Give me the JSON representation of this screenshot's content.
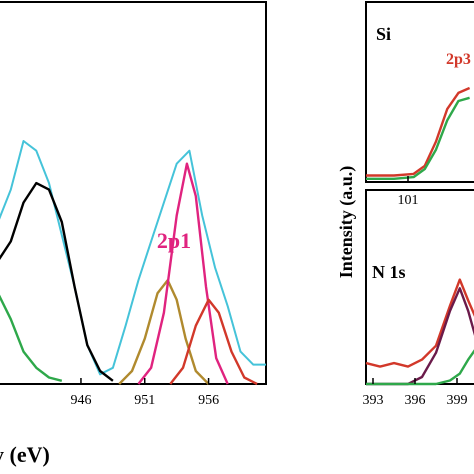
{
  "chart_data": [
    {
      "type": "line",
      "xlabel": "…gy (eV)",
      "ylabel": "",
      "xlim": [
        939.5,
        960.5
      ],
      "ylim": [
        0,
        1
      ],
      "x_ticks": [
        946,
        951,
        956
      ],
      "x_tick_labels": [
        "946",
        "951",
        "956"
      ],
      "annotations": [
        {
          "text": "2p1",
          "x": 954.6,
          "y": 0.88,
          "color": "#e0237f"
        }
      ],
      "series": [
        {
          "color": "#45c3d9",
          "points": [
            [
              939.5,
              0.5
            ],
            [
              940.5,
              0.6
            ],
            [
              941.5,
              0.75
            ],
            [
              942.5,
              0.72
            ],
            [
              943.5,
              0.62
            ],
            [
              944.5,
              0.46
            ],
            [
              945.5,
              0.3
            ],
            [
              946.5,
              0.12
            ],
            [
              947.5,
              0.03
            ],
            [
              948.5,
              0.05
            ],
            [
              949.5,
              0.18
            ],
            [
              950.5,
              0.32
            ],
            [
              951.5,
              0.44
            ],
            [
              952.5,
              0.56
            ],
            [
              953.5,
              0.68
            ],
            [
              954.5,
              0.72
            ],
            [
              955.5,
              0.52
            ],
            [
              956.5,
              0.36
            ],
            [
              957.5,
              0.24
            ],
            [
              958.5,
              0.1
            ],
            [
              959.5,
              0.06
            ],
            [
              960.5,
              0.06
            ]
          ]
        },
        {
          "color": "#000000",
          "points": [
            [
              939.5,
              0.38
            ],
            [
              940.5,
              0.44
            ],
            [
              941.5,
              0.56
            ],
            [
              942.5,
              0.62
            ],
            [
              943.5,
              0.6
            ],
            [
              944.5,
              0.5
            ],
            [
              945.5,
              0.3
            ],
            [
              946.5,
              0.12
            ],
            [
              947.5,
              0.04
            ],
            [
              948.5,
              0.01
            ]
          ]
        },
        {
          "color": "#2ea84a",
          "points": [
            [
              939.5,
              0.28
            ],
            [
              940.5,
              0.2
            ],
            [
              941.5,
              0.1
            ],
            [
              942.5,
              0.05
            ],
            [
              943.5,
              0.02
            ],
            [
              944.5,
              0.01
            ]
          ]
        },
        {
          "color": "#b08a2e",
          "points": [
            [
              949,
              0.0
            ],
            [
              950,
              0.04
            ],
            [
              951,
              0.14
            ],
            [
              952,
              0.28
            ],
            [
              952.8,
              0.32
            ],
            [
              953.5,
              0.26
            ],
            [
              954.2,
              0.14
            ],
            [
              955,
              0.04
            ],
            [
              956,
              0.0
            ]
          ]
        },
        {
          "color": "#e0237f",
          "points": [
            [
              950.5,
              0.0
            ],
            [
              951.5,
              0.05
            ],
            [
              952.5,
              0.22
            ],
            [
              953.5,
              0.52
            ],
            [
              954.3,
              0.68
            ],
            [
              955,
              0.58
            ],
            [
              955.8,
              0.3
            ],
            [
              956.6,
              0.08
            ],
            [
              957.5,
              0.0
            ]
          ]
        },
        {
          "color": "#d2382a",
          "points": [
            [
              953,
              0.0
            ],
            [
              954,
              0.05
            ],
            [
              955,
              0.18
            ],
            [
              956,
              0.26
            ],
            [
              956.8,
              0.22
            ],
            [
              957.8,
              0.1
            ],
            [
              958.8,
              0.02
            ],
            [
              959.8,
              0.0
            ]
          ]
        }
      ]
    },
    {
      "type": "line",
      "xlabel": "",
      "ylabel": "",
      "xlim": [
        99.5,
        103.5
      ],
      "ylim": [
        0,
        1
      ],
      "x_ticks": [
        101
      ],
      "x_tick_labels": [
        "101"
      ],
      "annotations": [
        {
          "text": "Si",
          "x": 99.7,
          "y": 0.9,
          "color": "#000000"
        },
        {
          "text": "2p3",
          "x": 102.3,
          "y": 0.8,
          "color": "#d2382a"
        }
      ],
      "series": [
        {
          "color": "#d2382a",
          "points": [
            [
              99.5,
              0.04
            ],
            [
              100.5,
              0.04
            ],
            [
              101.2,
              0.05
            ],
            [
              101.6,
              0.1
            ],
            [
              102.0,
              0.25
            ],
            [
              102.4,
              0.45
            ],
            [
              102.8,
              0.55
            ],
            [
              103.2,
              0.58
            ]
          ]
        },
        {
          "color": "#2ea84a",
          "points": [
            [
              99.5,
              0.02
            ],
            [
              100.5,
              0.02
            ],
            [
              101.2,
              0.03
            ],
            [
              101.6,
              0.08
            ],
            [
              102.0,
              0.2
            ],
            [
              102.4,
              0.38
            ],
            [
              102.8,
              0.5
            ],
            [
              103.2,
              0.52
            ]
          ]
        }
      ]
    },
    {
      "type": "line",
      "xlabel": "",
      "ylabel": "Intensity (a.u.)",
      "xlim": [
        392.5,
        400.5
      ],
      "ylim": [
        0,
        1
      ],
      "x_ticks": [
        393,
        396,
        399
      ],
      "x_tick_labels": [
        "393",
        "396",
        "399"
      ],
      "annotations": [
        {
          "text": "N 1s",
          "x": 393.0,
          "y": 0.88,
          "color": "#000000"
        }
      ],
      "series": [
        {
          "color": "#d2382a",
          "points": [
            [
              392.5,
              0.12
            ],
            [
              393.5,
              0.1
            ],
            [
              394.5,
              0.12
            ],
            [
              395.5,
              0.1
            ],
            [
              396.5,
              0.14
            ],
            [
              397.5,
              0.22
            ],
            [
              398.5,
              0.45
            ],
            [
              399.2,
              0.6
            ],
            [
              399.8,
              0.48
            ],
            [
              400.5,
              0.35
            ]
          ]
        },
        {
          "color": "#6b1a4a",
          "points": [
            [
              392.5,
              0.0
            ],
            [
              395.5,
              0.0
            ],
            [
              396.5,
              0.04
            ],
            [
              397.5,
              0.18
            ],
            [
              398.5,
              0.42
            ],
            [
              399.2,
              0.55
            ],
            [
              399.8,
              0.42
            ],
            [
              400.5,
              0.22
            ]
          ]
        },
        {
          "color": "#2ea84a",
          "points": [
            [
              392.5,
              0.0
            ],
            [
              397.5,
              0.0
            ],
            [
              398.5,
              0.02
            ],
            [
              399.2,
              0.06
            ],
            [
              399.8,
              0.14
            ],
            [
              400.5,
              0.22
            ]
          ]
        }
      ]
    }
  ]
}
